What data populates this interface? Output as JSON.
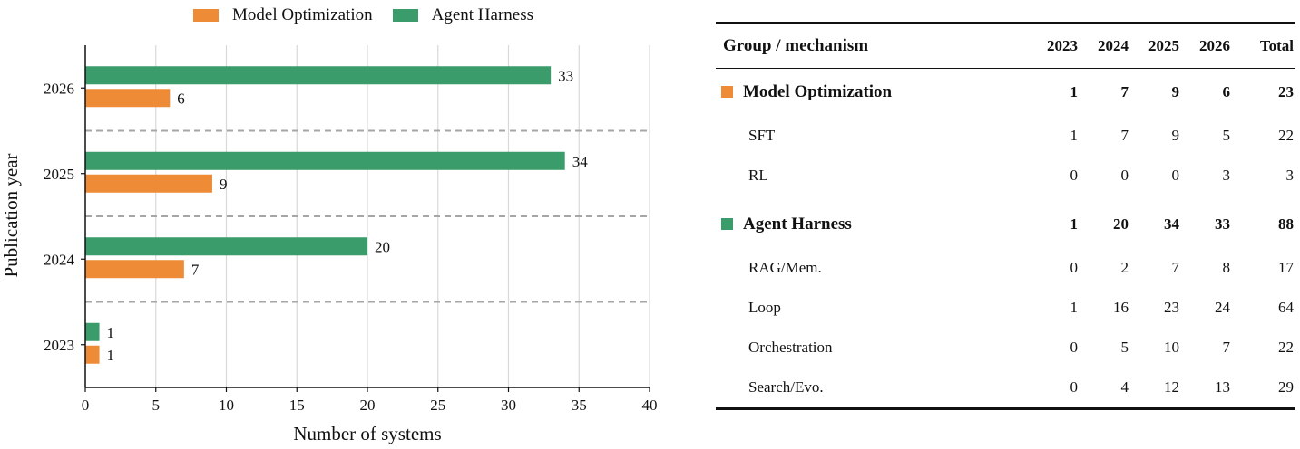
{
  "legend": {
    "model_optimization": "Model Optimization",
    "agent_harness": "Agent Harness"
  },
  "colors": {
    "model_optimization": "#ED8B36",
    "agent_harness": "#3A9B6B",
    "grid": "#d9d9d9",
    "separator": "#a6a6a6"
  },
  "chart_data": {
    "type": "bar",
    "orientation": "horizontal",
    "categories": [
      "2023",
      "2024",
      "2025",
      "2026"
    ],
    "series": [
      {
        "name": "Model Optimization",
        "values": [
          1,
          7,
          9,
          6
        ]
      },
      {
        "name": "Agent Harness",
        "values": [
          1,
          20,
          34,
          33
        ]
      }
    ],
    "xlabel": "Number of systems",
    "ylabel": "Publication year",
    "xlim": [
      0,
      40
    ],
    "xticks": [
      0,
      5,
      10,
      15,
      20,
      25,
      30,
      35,
      40
    ],
    "grid": "vertical",
    "legend_position": "top"
  },
  "table": {
    "headers": [
      "Group / mechanism",
      "2023",
      "2024",
      "2025",
      "2026",
      "Total"
    ],
    "groups": [
      {
        "name": "Model Optimization",
        "values": [
          "1",
          "7",
          "9",
          "6",
          "23"
        ],
        "rows": [
          {
            "label": "SFT",
            "values": [
              "1",
              "7",
              "9",
              "5",
              "22"
            ]
          },
          {
            "label": "RL",
            "values": [
              "0",
              "0",
              "0",
              "3",
              "3"
            ]
          }
        ]
      },
      {
        "name": "Agent Harness",
        "values": [
          "1",
          "20",
          "34",
          "33",
          "88"
        ],
        "rows": [
          {
            "label": "RAG/Mem.",
            "values": [
              "0",
              "2",
              "7",
              "8",
              "17"
            ]
          },
          {
            "label": "Loop",
            "values": [
              "1",
              "16",
              "23",
              "24",
              "64"
            ]
          },
          {
            "label": "Orchestration",
            "values": [
              "0",
              "5",
              "10",
              "7",
              "22"
            ]
          },
          {
            "label": "Search/Evo.",
            "values": [
              "0",
              "4",
              "12",
              "13",
              "29"
            ]
          }
        ]
      }
    ]
  }
}
